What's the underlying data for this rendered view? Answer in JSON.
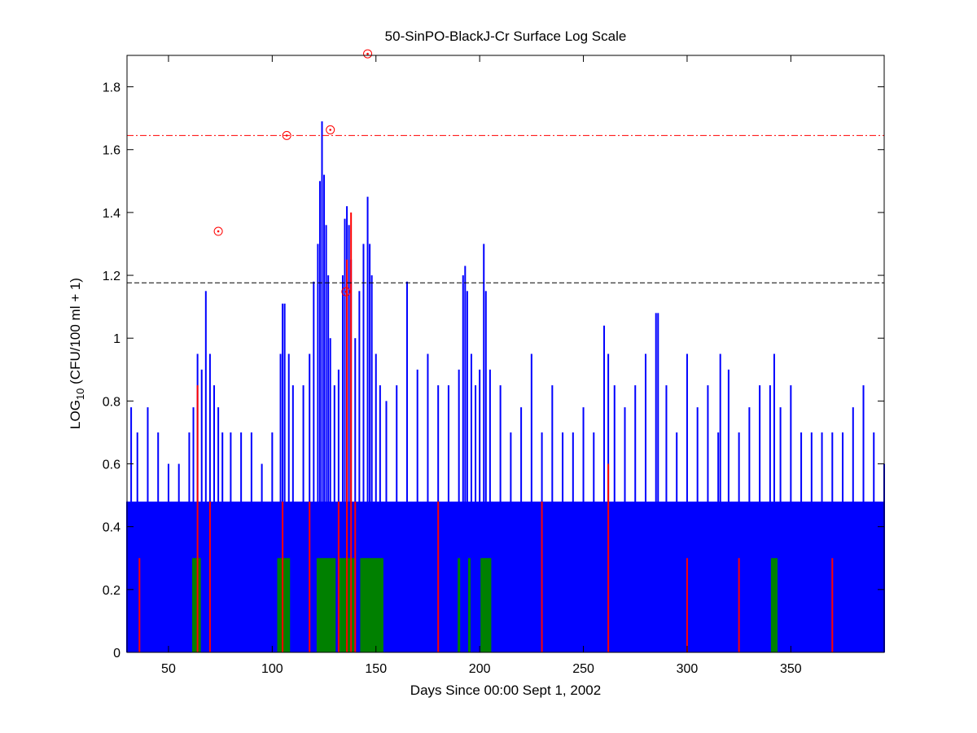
{
  "chart_data": {
    "type": "bar",
    "title": "50-SinPO-BlackJ-Cr Surface Log Scale",
    "xlabel": "Days Since 00:00 Sept 1, 2002",
    "ylabel": {
      "main": "LOG",
      "sub": "10",
      "rest": " (CFU/100 ml + 1)"
    },
    "xlim": [
      30,
      395
    ],
    "ylim": [
      0,
      1.9
    ],
    "x_ticks": [
      50,
      100,
      150,
      200,
      250,
      300,
      350
    ],
    "y_ticks": [
      0,
      0.2,
      0.4,
      0.6,
      0.8,
      1,
      1.2,
      1.4,
      1.6,
      1.8
    ],
    "y_tick_labels": [
      "0",
      "0.2",
      "0.4",
      "0.6",
      "0.8",
      "1",
      "1.2",
      "1.4",
      "1.6",
      "1.8"
    ],
    "grid": false,
    "series": [
      {
        "color": "#0000ff",
        "x": [
          30,
          32,
          35,
          40,
          45,
          50,
          55,
          60,
          62,
          64,
          66,
          68,
          70,
          72,
          74,
          76,
          80,
          85,
          90,
          95,
          100,
          104,
          105,
          106,
          108,
          110,
          115,
          118,
          120,
          122,
          123,
          124,
          125,
          126,
          127,
          128,
          130,
          132,
          134,
          135,
          136,
          137,
          138,
          140,
          142,
          144,
          146,
          147,
          148,
          150,
          152,
          155,
          160,
          165,
          170,
          175,
          180,
          185,
          190,
          192,
          193,
          194,
          196,
          198,
          200,
          202,
          203,
          205,
          210,
          215,
          220,
          225,
          230,
          235,
          240,
          245,
          250,
          255,
          260,
          262,
          265,
          270,
          275,
          280,
          285,
          286,
          290,
          295,
          300,
          305,
          310,
          315,
          316,
          320,
          325,
          330,
          335,
          340,
          342,
          345,
          350,
          355,
          360,
          365,
          370,
          375,
          380,
          385,
          390,
          395
        ],
        "y": [
          0.48,
          0.78,
          0.7,
          0.78,
          0.7,
          0.6,
          0.6,
          0.7,
          0.78,
          0.95,
          0.9,
          1.15,
          0.95,
          0.85,
          0.78,
          0.7,
          0.7,
          0.7,
          0.7,
          0.6,
          0.7,
          0.95,
          1.11,
          1.11,
          0.95,
          0.85,
          0.85,
          0.95,
          1.18,
          1.3,
          1.5,
          1.69,
          1.52,
          1.36,
          1.2,
          1.0,
          0.85,
          0.9,
          1.2,
          1.38,
          1.42,
          1.36,
          1.25,
          1.0,
          1.15,
          1.3,
          1.45,
          1.3,
          1.2,
          0.95,
          0.85,
          0.8,
          0.85,
          1.18,
          0.9,
          0.95,
          0.85,
          0.85,
          0.9,
          1.2,
          1.23,
          1.15,
          0.95,
          0.85,
          0.9,
          1.3,
          1.15,
          0.9,
          0.85,
          0.7,
          0.78,
          0.95,
          0.7,
          0.85,
          0.7,
          0.7,
          0.78,
          0.7,
          1.04,
          0.95,
          0.85,
          0.78,
          0.85,
          0.95,
          1.08,
          1.08,
          0.85,
          0.7,
          0.95,
          0.78,
          0.85,
          0.7,
          0.95,
          0.9,
          0.7,
          0.78,
          0.85,
          0.85,
          0.95,
          0.78,
          0.85,
          0.7,
          0.7,
          0.7,
          0.7,
          0.7,
          0.78,
          0.85,
          0.7,
          0.6
        ]
      },
      {
        "color": "#008000",
        "x": [
          62,
          63,
          64,
          65,
          103,
          104,
          105,
          106,
          107,
          108,
          122,
          123,
          124,
          125,
          126,
          127,
          128,
          129,
          130,
          133,
          134,
          135,
          136,
          137,
          138,
          139,
          143,
          144,
          145,
          146,
          147,
          148,
          149,
          150,
          151,
          152,
          153,
          190,
          195,
          201,
          202,
          203,
          204,
          205,
          341,
          342,
          343
        ],
        "y": [
          0.3,
          0.3,
          0.3,
          0.3,
          0.3,
          0.3,
          0.3,
          0.3,
          0.3,
          0.3,
          0.3,
          0.3,
          0.3,
          0.3,
          0.3,
          0.3,
          0.3,
          0.3,
          0.3,
          0.3,
          0.3,
          0.3,
          0.3,
          0.3,
          0.3,
          0.3,
          0.3,
          0.3,
          0.3,
          0.3,
          0.3,
          0.3,
          0.3,
          0.3,
          0.3,
          0.3,
          0.3,
          0.3,
          0.3,
          0.3,
          0.3,
          0.3,
          0.3,
          0.3,
          0.3,
          0.3,
          0.3
        ]
      },
      {
        "color": "#ff0000",
        "x": [
          36,
          64,
          70,
          105,
          118,
          132,
          136,
          138,
          140,
          180,
          230,
          262,
          300,
          325,
          370
        ],
        "y": [
          0.3,
          0.85,
          0.48,
          0.48,
          0.48,
          0.48,
          1.25,
          1.4,
          0.48,
          0.48,
          0.48,
          0.6,
          0.3,
          0.3,
          0.3
        ]
      }
    ],
    "circled_points": {
      "x": [
        74,
        107,
        128,
        135.5,
        146
      ],
      "y": [
        1.34,
        1.645,
        1.663,
        1.148,
        1.905
      ]
    },
    "reference_lines": [
      {
        "y": 1.645,
        "color": "#ff0000",
        "style": "dash-dot"
      },
      {
        "y": 1.176,
        "color": "#000000",
        "style": "dashed"
      }
    ]
  }
}
